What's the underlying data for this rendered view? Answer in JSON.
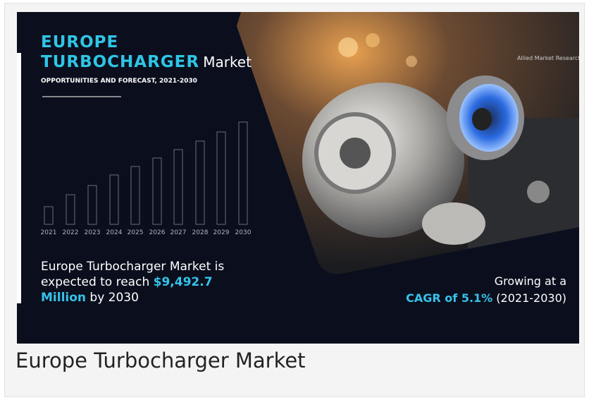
{
  "infographic": {
    "title_line1": "EUROPE",
    "title_highlight": "TURBOCHARGER",
    "title_suffix": "Market",
    "subtitle": "OPPORTUNITIES AND FORECAST, 2021-2030",
    "years": [
      "2021",
      "2022",
      "2023",
      "2024",
      "2025",
      "2026",
      "2027",
      "2028",
      "2029",
      "2030"
    ],
    "logo": "Allied Market Research",
    "summary": {
      "text_before": "Europe Turbocharger Market is expected to reach",
      "highlight": "$9,492.7 Million",
      "text_after": "by 2030"
    },
    "growth": {
      "line1": "Growing at a",
      "highlight": "CAGR of 5.1%",
      "period": "(2021-2030)"
    }
  },
  "caption": "Europe Turbocharger Market"
}
